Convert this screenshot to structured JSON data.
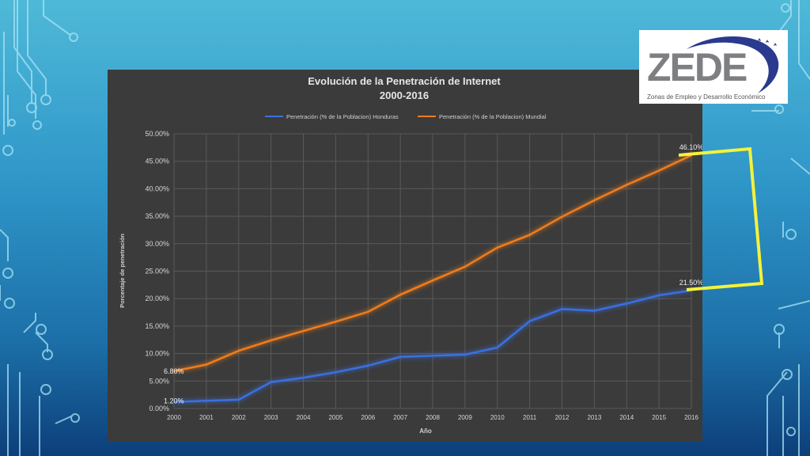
{
  "logo": {
    "text": "ZEDE",
    "subtitle": "Zonas de Empleo y Desarrollo Económico"
  },
  "colors": {
    "honduras": "#3b6fe0",
    "mundial": "#f07d1e",
    "highlight": "#f4f23a"
  },
  "chart_data": {
    "type": "line",
    "title": "Evolución de la Penetración de Internet",
    "subtitle": "2000-2016",
    "xlabel": "Año",
    "ylabel": "Porcentaje de penetración",
    "ylim": [
      0,
      50
    ],
    "yticks": [
      "0.00%",
      "5.00%",
      "10.00%",
      "15.00%",
      "20.00%",
      "25.00%",
      "30.00%",
      "35.00%",
      "40.00%",
      "45.00%",
      "50.00%"
    ],
    "grid": true,
    "legend": "top",
    "categories": [
      "2000",
      "2001",
      "2002",
      "2003",
      "2004",
      "2005",
      "2006",
      "2007",
      "2008",
      "2009",
      "2010",
      "2011",
      "2012",
      "2013",
      "2014",
      "2015",
      "2016"
    ],
    "series": [
      {
        "name": "Penetración (% de la Poblacion) Honduras",
        "values": [
          1.2,
          1.4,
          1.6,
          4.8,
          5.6,
          6.6,
          7.8,
          9.4,
          9.6,
          9.8,
          11.1,
          15.9,
          18.1,
          17.8,
          19.1,
          20.6,
          21.5
        ]
      },
      {
        "name": "Penetración (% de la Poblacion) Mundial",
        "values": [
          6.8,
          8.0,
          10.5,
          12.4,
          14.1,
          15.8,
          17.6,
          20.7,
          23.3,
          25.8,
          29.3,
          31.6,
          34.9,
          37.9,
          40.7,
          43.3,
          46.1
        ]
      }
    ],
    "annotations": [
      {
        "series": 1,
        "index": 0,
        "text": "6.80%"
      },
      {
        "series": 0,
        "index": 0,
        "text": "1.20%"
      },
      {
        "series": 1,
        "index": 16,
        "text": "46.10%"
      },
      {
        "series": 0,
        "index": 16,
        "text": "21.50%"
      }
    ]
  }
}
